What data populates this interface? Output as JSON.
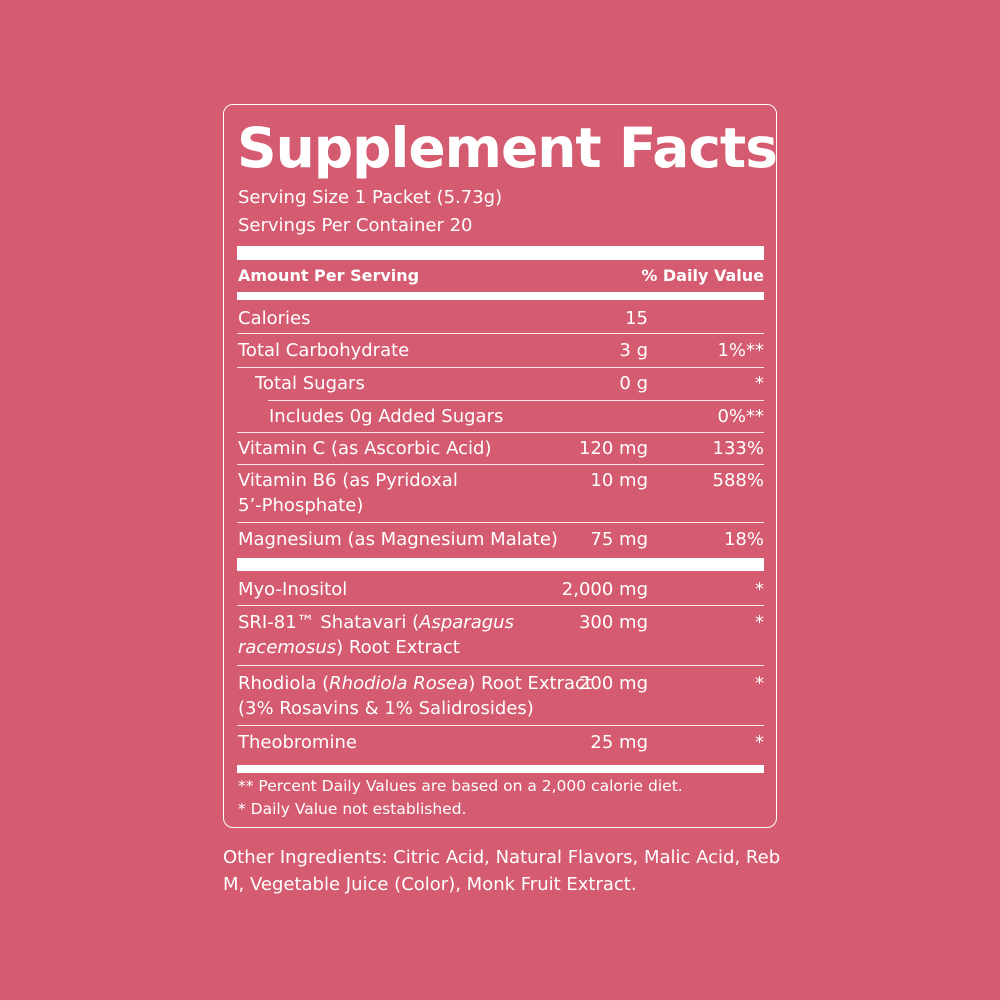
{
  "colors": {
    "background": "#d45b70",
    "text": "#ffffff"
  },
  "title": "Supplement Facts",
  "serving_size": "Serving Size 1 Packet (5.73g)",
  "servings_per_container": "Servings Per Container 20",
  "header": {
    "left": "Amount Per Serving",
    "right": "% Daily Value"
  },
  "nutrients": [
    {
      "name": "Calories",
      "amount": "15",
      "dv": ""
    },
    {
      "name": "Total Carbohydrate",
      "amount": "3 g",
      "dv": "1%**"
    },
    {
      "name": "Total Sugars",
      "amount": "0 g",
      "dv": "*"
    },
    {
      "name": "Includes 0g Added Sugars",
      "amount": "",
      "dv": "0%**"
    },
    {
      "name": "Vitamin C (as Ascorbic Acid)",
      "amount": "120 mg",
      "dv": "133%"
    },
    {
      "name": "Vitamin B6 (as Pyridoxal 5’-Phosphate)",
      "amount": "10 mg",
      "dv": "588%"
    },
    {
      "name": "Magnesium (as Magnesium Malate)",
      "amount": "75 mg",
      "dv": "18%"
    }
  ],
  "others": [
    {
      "name": "Myo-Inositol",
      "amount": "2,000 mg",
      "dv": "*"
    },
    {
      "name_a": "SRI-81™ Shatavari (",
      "name_i": "Asparagus racemosus",
      "name_b": ") Root Extract",
      "amount": "300 mg",
      "dv": "*"
    },
    {
      "name_a": "Rhodiola (",
      "name_i": "Rhodiola Rosea",
      "name_b": ") Root Extract (3% Rosavins & 1% Salidrosides)",
      "amount": "200 mg",
      "dv": "*"
    },
    {
      "name": "Theobromine",
      "amount": "25 mg",
      "dv": "*"
    }
  ],
  "footnotes": [
    "** Percent Daily Values are based on a 2,000 calorie diet.",
    "* Daily Value not established."
  ],
  "other_ingredients": "Other Ingredients: Citric Acid, Natural Flavors, Malic Acid, Reb M, Vegetable Juice (Color), Monk Fruit Extract."
}
